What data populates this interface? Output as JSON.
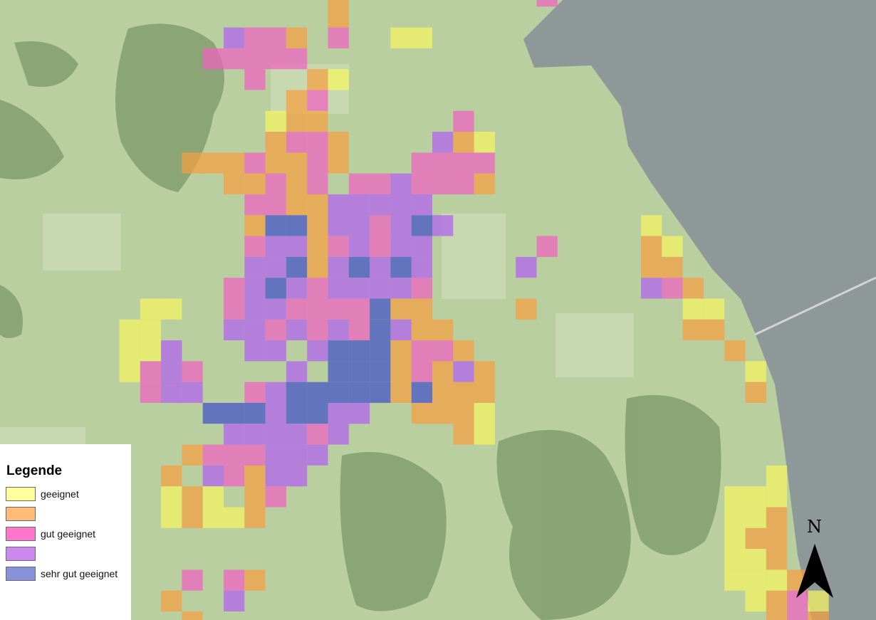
{
  "legend": {
    "title": "Legende",
    "items": [
      {
        "label": "geeignet",
        "color": "#ffff99"
      },
      {
        "label": "",
        "color": "#ffbb77"
      },
      {
        "label": "gut geeignet",
        "color": "#ff77cc"
      },
      {
        "label": "",
        "color": "#cc88ee"
      },
      {
        "label": "sehr gut geeignet",
        "color": "#8890d8"
      }
    ]
  },
  "north_arrow": {
    "label": "N",
    "icon": "north-arrow-icon"
  },
  "colors": {
    "geeignet": "#f5f560",
    "class2": "#f5a040",
    "gut_geeignet": "#f060c0",
    "class4": "#b060f0",
    "sehr_gut_geeignet": "#4050c8",
    "lake": "#8e9899",
    "land": "#b9cfa0"
  }
}
